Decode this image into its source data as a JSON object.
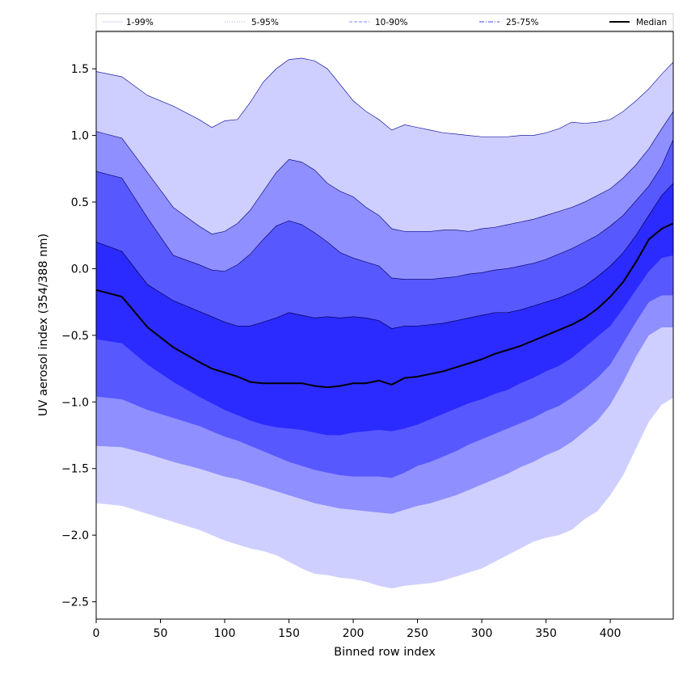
{
  "chart_data": {
    "type": "area",
    "xlabel": "Binned row index",
    "ylabel": "UV aerosol index (354/388 nm)",
    "xlim": [
      0,
      449
    ],
    "ylim": [
      -2.63,
      1.78
    ],
    "xticks": [
      0,
      50,
      100,
      150,
      200,
      250,
      300,
      350,
      400
    ],
    "xtick_labels": [
      "0",
      "50",
      "100",
      "150",
      "200",
      "250",
      "300",
      "350",
      "400"
    ],
    "yticks": [
      1.5,
      1.0,
      0.5,
      0.0,
      -0.5,
      -1.0,
      -1.5,
      -2.0,
      -2.5
    ],
    "ytick_labels": [
      "1.5",
      "1.0",
      "0.5",
      "0.0",
      "−0.5",
      "−1.0",
      "−1.5",
      "−2.0",
      "−2.5"
    ],
    "legend_position": "top",
    "grid": false,
    "x": [
      0,
      20,
      40,
      60,
      80,
      90,
      100,
      110,
      120,
      130,
      140,
      150,
      160,
      170,
      180,
      190,
      200,
      210,
      220,
      230,
      240,
      250,
      260,
      270,
      280,
      290,
      300,
      310,
      320,
      330,
      340,
      350,
      360,
      370,
      380,
      390,
      400,
      410,
      420,
      430,
      440,
      449
    ],
    "bands": [
      {
        "name": "1-99%",
        "color": "#cfcfff",
        "line_color": "#1a1aa8",
        "line_style": "solid",
        "upper": [
          1.48,
          1.44,
          1.3,
          1.22,
          1.12,
          1.06,
          1.11,
          1.12,
          1.25,
          1.4,
          1.5,
          1.57,
          1.58,
          1.56,
          1.5,
          1.38,
          1.26,
          1.18,
          1.12,
          1.04,
          1.08,
          1.06,
          1.04,
          1.02,
          1.01,
          1.0,
          0.99,
          0.99,
          0.99,
          1.0,
          1.0,
          1.02,
          1.05,
          1.1,
          1.09,
          1.1,
          1.12,
          1.18,
          1.26,
          1.35,
          1.46,
          1.55
        ],
        "lower": [
          -1.76,
          -1.78,
          -1.84,
          -1.9,
          -1.96,
          -2.0,
          -2.04,
          -2.07,
          -2.1,
          -2.12,
          -2.15,
          -2.2,
          -2.25,
          -2.29,
          -2.3,
          -2.32,
          -2.33,
          -2.35,
          -2.38,
          -2.4,
          -2.38,
          -2.37,
          -2.36,
          -2.34,
          -2.31,
          -2.28,
          -2.25,
          -2.2,
          -2.15,
          -2.1,
          -2.05,
          -2.02,
          -2.0,
          -1.96,
          -1.88,
          -1.82,
          -1.7,
          -1.55,
          -1.35,
          -1.15,
          -1.02,
          -0.97
        ]
      },
      {
        "name": "5-95%",
        "color": "#8f8fff",
        "line_color": "#111188",
        "line_style": "solid",
        "upper": [
          1.03,
          0.98,
          0.72,
          0.46,
          0.32,
          0.26,
          0.28,
          0.34,
          0.44,
          0.58,
          0.72,
          0.82,
          0.8,
          0.74,
          0.64,
          0.58,
          0.54,
          0.46,
          0.4,
          0.3,
          0.28,
          0.28,
          0.28,
          0.29,
          0.29,
          0.28,
          0.3,
          0.31,
          0.33,
          0.35,
          0.37,
          0.4,
          0.43,
          0.46,
          0.5,
          0.55,
          0.6,
          0.68,
          0.78,
          0.9,
          1.05,
          1.18
        ],
        "lower": [
          -1.33,
          -1.34,
          -1.39,
          -1.45,
          -1.5,
          -1.53,
          -1.56,
          -1.58,
          -1.61,
          -1.64,
          -1.67,
          -1.7,
          -1.73,
          -1.76,
          -1.78,
          -1.8,
          -1.81,
          -1.82,
          -1.83,
          -1.84,
          -1.81,
          -1.78,
          -1.76,
          -1.73,
          -1.7,
          -1.66,
          -1.62,
          -1.58,
          -1.54,
          -1.49,
          -1.45,
          -1.4,
          -1.36,
          -1.3,
          -1.22,
          -1.14,
          -1.02,
          -0.85,
          -0.66,
          -0.5,
          -0.44,
          -0.44
        ]
      },
      {
        "name": "10-90%",
        "color": "#5858ff",
        "line_color": "#0a0a70",
        "line_style": "solid",
        "upper": [
          0.73,
          0.68,
          0.38,
          0.1,
          0.03,
          -0.01,
          -0.02,
          0.03,
          0.11,
          0.22,
          0.32,
          0.36,
          0.33,
          0.27,
          0.2,
          0.12,
          0.08,
          0.05,
          0.02,
          -0.07,
          -0.08,
          -0.08,
          -0.08,
          -0.07,
          -0.06,
          -0.04,
          -0.03,
          -0.01,
          0.0,
          0.02,
          0.04,
          0.07,
          0.11,
          0.15,
          0.2,
          0.25,
          0.32,
          0.4,
          0.51,
          0.62,
          0.77,
          0.97
        ],
        "lower": [
          -0.96,
          -0.98,
          -1.06,
          -1.12,
          -1.18,
          -1.22,
          -1.26,
          -1.29,
          -1.33,
          -1.37,
          -1.41,
          -1.45,
          -1.48,
          -1.51,
          -1.53,
          -1.55,
          -1.56,
          -1.56,
          -1.56,
          -1.57,
          -1.53,
          -1.48,
          -1.45,
          -1.41,
          -1.37,
          -1.32,
          -1.28,
          -1.24,
          -1.2,
          -1.16,
          -1.12,
          -1.07,
          -1.03,
          -0.97,
          -0.9,
          -0.82,
          -0.72,
          -0.56,
          -0.4,
          -0.25,
          -0.2,
          -0.2
        ]
      },
      {
        "name": "25-75%",
        "color": "#2b2bff",
        "line_color": "#000050",
        "line_style": "solid",
        "upper": [
          0.2,
          0.13,
          -0.12,
          -0.24,
          -0.32,
          -0.36,
          -0.4,
          -0.43,
          -0.43,
          -0.4,
          -0.37,
          -0.33,
          -0.35,
          -0.37,
          -0.36,
          -0.37,
          -0.36,
          -0.37,
          -0.39,
          -0.45,
          -0.43,
          -0.43,
          -0.42,
          -0.41,
          -0.39,
          -0.37,
          -0.35,
          -0.33,
          -0.33,
          -0.31,
          -0.28,
          -0.25,
          -0.22,
          -0.18,
          -0.13,
          -0.06,
          0.02,
          0.12,
          0.25,
          0.4,
          0.55,
          0.64
        ],
        "lower": [
          -0.53,
          -0.56,
          -0.72,
          -0.85,
          -0.96,
          -1.01,
          -1.06,
          -1.1,
          -1.14,
          -1.17,
          -1.19,
          -1.2,
          -1.21,
          -1.23,
          -1.25,
          -1.25,
          -1.23,
          -1.22,
          -1.21,
          -1.22,
          -1.2,
          -1.17,
          -1.13,
          -1.09,
          -1.05,
          -1.01,
          -0.98,
          -0.94,
          -0.91,
          -0.86,
          -0.82,
          -0.77,
          -0.73,
          -0.67,
          -0.59,
          -0.51,
          -0.43,
          -0.3,
          -0.16,
          -0.02,
          0.08,
          0.1
        ]
      }
    ],
    "series": [
      {
        "name": "Median",
        "color": "#000000",
        "values": [
          -0.16,
          -0.21,
          -0.44,
          -0.59,
          -0.7,
          -0.75,
          -0.78,
          -0.81,
          -0.85,
          -0.86,
          -0.86,
          -0.86,
          -0.86,
          -0.88,
          -0.89,
          -0.88,
          -0.86,
          -0.86,
          -0.84,
          -0.87,
          -0.82,
          -0.81,
          -0.79,
          -0.77,
          -0.74,
          -0.71,
          -0.68,
          -0.64,
          -0.61,
          -0.58,
          -0.54,
          -0.5,
          -0.46,
          -0.42,
          -0.37,
          -0.3,
          -0.21,
          -0.1,
          0.05,
          0.22,
          0.3,
          0.34
        ]
      }
    ],
    "legend": [
      {
        "label": "1-99%",
        "style": "solid",
        "color": "#d6d6ff"
      },
      {
        "label": "5-95%",
        "style": "dotted",
        "color": "#a8a8ff"
      },
      {
        "label": "10-90%",
        "style": "dashed",
        "color": "#8080ff"
      },
      {
        "label": "25-75%",
        "style": "dashdot",
        "color": "#4040ff"
      },
      {
        "label": "Median",
        "style": "solid",
        "color": "#000000"
      }
    ]
  }
}
